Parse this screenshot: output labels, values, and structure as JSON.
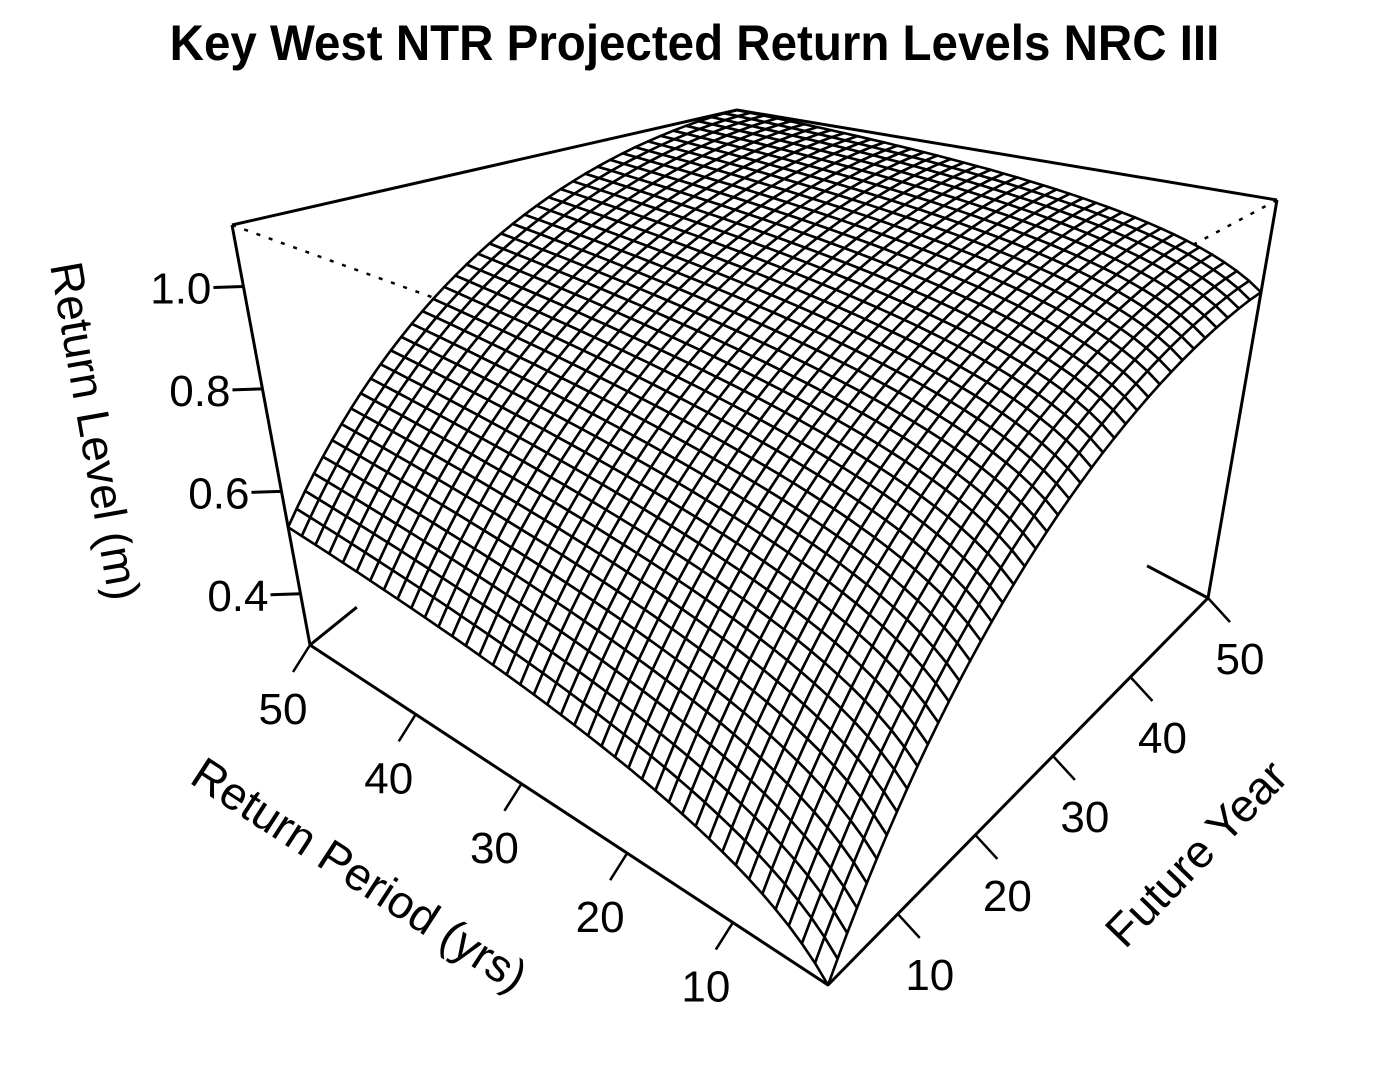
{
  "title": "Key West NTR Projected Return Levels NRC III",
  "chart_data": {
    "type": "surface",
    "title": "Key West NTR Projected Return Levels NRC III",
    "xlabel": "Return Period (yrs)",
    "ylabel": "Future Year",
    "zlabel": "Return Level (m)",
    "x_ticks": [
      10,
      20,
      30,
      40,
      50
    ],
    "y_ticks": [
      10,
      20,
      30,
      40,
      50
    ],
    "z_ticks": [
      "0.4",
      "0.6",
      "0.8",
      "1.0"
    ],
    "x_range": [
      1,
      50
    ],
    "y_range": [
      1,
      50
    ],
    "z_range": [
      0.3,
      1.12
    ],
    "grid_lines": 40,
    "corner_values": {
      "rp1_fy1": 0.3,
      "rp50_fy1": 0.53,
      "rp1_fy50": 0.93,
      "rp50_fy50": 1.12
    },
    "style": "wireframe mesh, black lines on white, box with dotted hidden edges"
  }
}
